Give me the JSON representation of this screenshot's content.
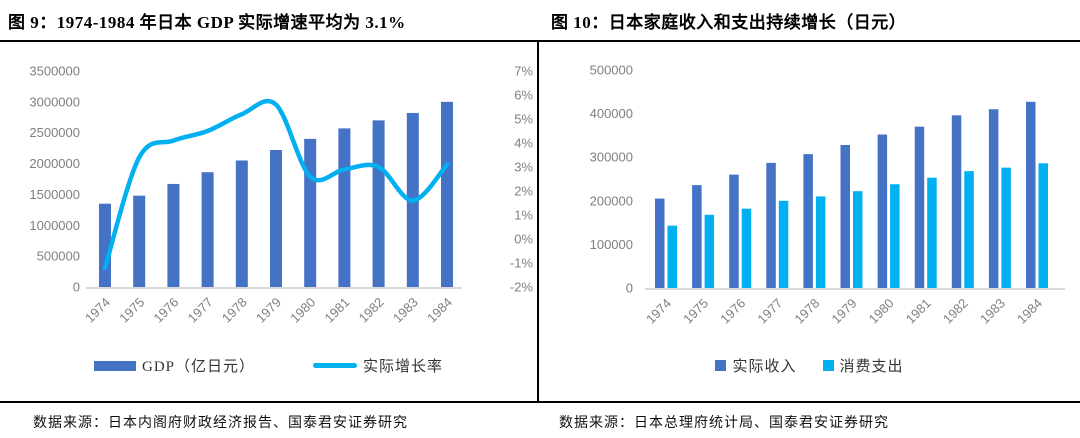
{
  "colors": {
    "bar_blue": "#4472C4",
    "line_cyan": "#00B0F0",
    "axis_text": "#808080",
    "baseline": "#D9D9D9",
    "rule": "#000000"
  },
  "figures": [
    {
      "title": "图 9：1974-1984 年日本 GDP 实际增速平均为 3.1%",
      "source": "数据来源：日本内阁府财政经济报告、国泰君安证券研究",
      "chart_data": {
        "type": "combo-bar-line",
        "categories": [
          "1974",
          "1975",
          "1976",
          "1977",
          "1978",
          "1979",
          "1980",
          "1981",
          "1982",
          "1983",
          "1984"
        ],
        "series": [
          {
            "name": "GDP（亿日元）",
            "type": "bar",
            "axis": "left",
            "color": "#4472C4",
            "values": [
              1350000,
              1480000,
              1670000,
              1860000,
              2050000,
              2220000,
              2400000,
              2570000,
              2700000,
              2820000,
              3000000
            ]
          },
          {
            "name": "实际增长率",
            "type": "line",
            "axis": "right",
            "color": "#00B0F0",
            "values": [
              -1.2,
              3.4,
              4.1,
              4.5,
              5.2,
              5.6,
              2.6,
              2.9,
              3.0,
              1.6,
              3.1
            ]
          }
        ],
        "left_axis": {
          "min": 0,
          "max": 3500000,
          "ticks_top_to_bottom": [
            "3500000",
            "3000000",
            "2500000",
            "2000000",
            "1500000",
            "1000000",
            "500000",
            "0"
          ]
        },
        "right_axis": {
          "min": -2,
          "max": 7,
          "ticks_top_to_bottom": [
            "7%",
            "6%",
            "5%",
            "4%",
            "3%",
            "2%",
            "1%",
            "0%",
            "-1%",
            "-2%"
          ]
        },
        "grid": false,
        "legend_position": "bottom",
        "x_labels_rotated_degrees": 45
      }
    },
    {
      "title": "图 10：日本家庭收入和支出持续增长（日元）",
      "source": "数据来源：日本总理府统计局、国泰君安证券研究",
      "chart_data": {
        "type": "bar",
        "categories": [
          "1974",
          "1975",
          "1976",
          "1977",
          "1978",
          "1979",
          "1980",
          "1981",
          "1982",
          "1983",
          "1984"
        ],
        "series": [
          {
            "name": "实际收入",
            "color": "#4472C4",
            "values": [
              205000,
              236000,
              260000,
              287000,
              307000,
              328000,
              352000,
              370000,
              396000,
              410000,
              427000
            ]
          },
          {
            "name": "消费支出",
            "color": "#00B0F0",
            "values": [
              143000,
              168000,
              182000,
              200000,
              210000,
              222000,
              238000,
              253000,
              268000,
              276000,
              286000
            ]
          }
        ],
        "y_axis": {
          "min": 0,
          "max": 500000,
          "ticks_top_to_bottom": [
            "500000",
            "400000",
            "300000",
            "200000",
            "100000",
            "0"
          ]
        },
        "grid": false,
        "legend_position": "bottom",
        "x_labels_rotated_degrees": 45
      }
    }
  ]
}
